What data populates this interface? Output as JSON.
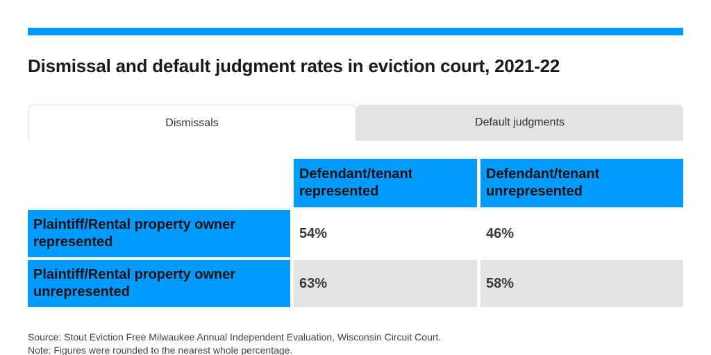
{
  "title": "Dismissal and default judgment rates in eviction court, 2021-22",
  "tabs": {
    "dismissals": "Dismissals",
    "default_judgments": "Default judgments"
  },
  "table": {
    "col_headers": [
      "Defendant/tenant represented",
      "Defendant/tenant unrepresented"
    ],
    "rows": [
      {
        "label": "Plaintiff/Rental property owner represented",
        "values": [
          "54%",
          "46%"
        ]
      },
      {
        "label": "Plaintiff/Rental property owner unrepresented",
        "values": [
          "63%",
          "58%"
        ]
      }
    ]
  },
  "footer": {
    "source": "Source: Stout Eviction Free Milwaukee Annual Independent Evaluation, Wisconsin Circuit Court.",
    "note": "Note: Figures were rounded to the nearest whole percentage."
  },
  "colors": {
    "accent_blue": "#009bff",
    "inactive_gray": "#e3e3e3"
  },
  "chart_data": {
    "type": "table",
    "title": "Dismissal and default judgment rates in eviction court, 2021-22",
    "tabs": [
      "Dismissals",
      "Default judgments"
    ],
    "active_tab": "Dismissals",
    "columns": [
      "Defendant/tenant represented",
      "Defendant/tenant unrepresented"
    ],
    "rows": [
      "Plaintiff/Rental property owner represented",
      "Plaintiff/Rental property owner unrepresented"
    ],
    "values_percent": [
      [
        54,
        46
      ],
      [
        63,
        58
      ]
    ],
    "unit": "%",
    "source": "Source: Stout Eviction Free Milwaukee Annual Independent Evaluation, Wisconsin Circuit Court.",
    "note": "Note: Figures were rounded to the nearest whole percentage."
  }
}
